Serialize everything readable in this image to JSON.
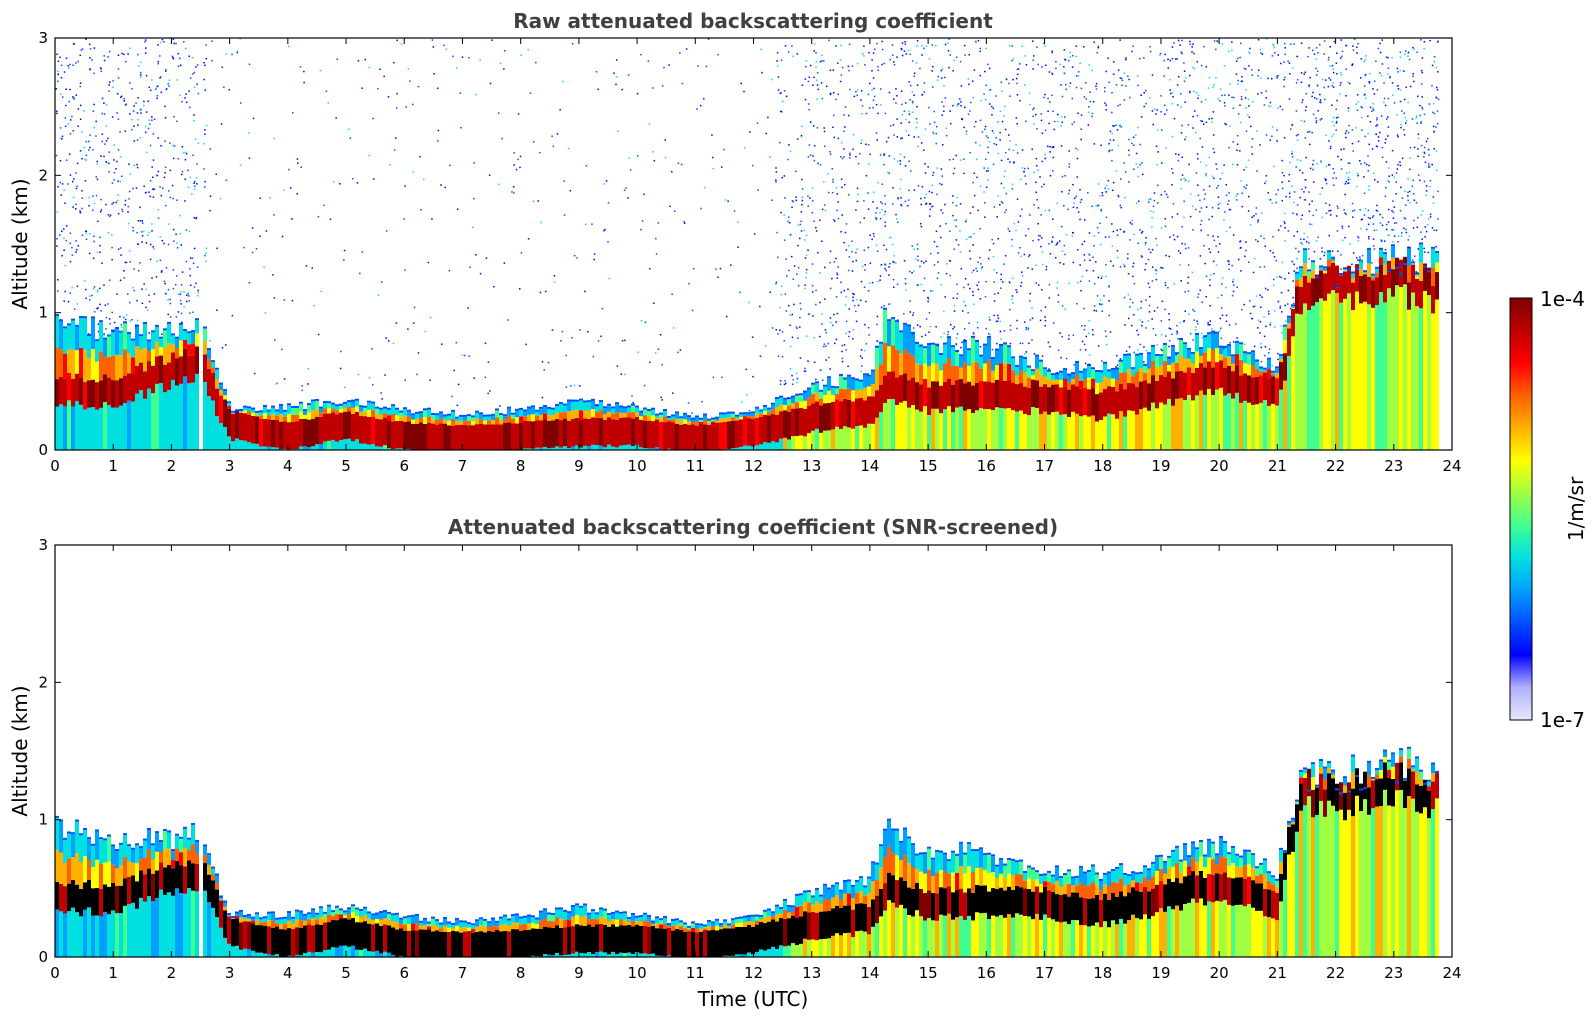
{
  "chart_data": [
    {
      "type": "heatmap",
      "title": "Raw attenuated backscattering coefficient",
      "xlabel": "",
      "ylabel": "Altitude (km)",
      "xlim": [
        0,
        24
      ],
      "ylim": [
        0,
        3
      ],
      "xticks": [
        "0",
        "1",
        "2",
        "3",
        "4",
        "5",
        "6",
        "7",
        "8",
        "9",
        "10",
        "11",
        "12",
        "13",
        "14",
        "15",
        "16",
        "17",
        "18",
        "19",
        "20",
        "21",
        "22",
        "23",
        "24"
      ],
      "yticks": [
        "0",
        "1",
        "2",
        "3"
      ],
      "gap": [
        2.45,
        2.55
      ],
      "data_end": 23.8,
      "layer_top_km": {
        "time": [
          0,
          1,
          2,
          2.5,
          3,
          4,
          5,
          6,
          7,
          8,
          9,
          10,
          11,
          12,
          13,
          14,
          14.3,
          15,
          16,
          17,
          18,
          19,
          20,
          21,
          21.4,
          22,
          23,
          23.8
        ],
        "values": [
          0.95,
          0.85,
          0.85,
          0.9,
          0.3,
          0.3,
          0.35,
          0.28,
          0.25,
          0.28,
          0.35,
          0.3,
          0.22,
          0.28,
          0.45,
          0.55,
          1.0,
          0.75,
          0.75,
          0.6,
          0.6,
          0.7,
          0.8,
          0.6,
          1.35,
          1.3,
          1.4,
          1.35
        ]
      },
      "peak_backscatter_km": {
        "time": [
          0,
          1,
          2,
          2.5,
          3,
          4,
          5,
          6,
          7,
          8,
          9,
          10,
          11,
          12,
          13,
          14,
          14.3,
          15,
          16,
          17,
          18,
          19,
          20,
          21,
          21.4,
          22,
          23,
          23.8
        ],
        "values": [
          0.45,
          0.45,
          0.6,
          0.65,
          0.2,
          0.12,
          0.2,
          0.12,
          0.1,
          0.12,
          0.15,
          0.15,
          0.1,
          0.15,
          0.25,
          0.3,
          0.5,
          0.4,
          0.42,
          0.4,
          0.35,
          0.45,
          0.55,
          0.42,
          1.2,
          1.2,
          1.25,
          1.2
        ]
      },
      "noise_above": true
    },
    {
      "type": "heatmap",
      "title": "Attenuated backscattering coefficient (SNR-screened)",
      "xlabel": "Time (UTC)",
      "ylabel": "Altitude (km)",
      "xlim": [
        0,
        24
      ],
      "ylim": [
        0,
        3
      ],
      "xticks": [
        "0",
        "1",
        "2",
        "3",
        "4",
        "5",
        "6",
        "7",
        "8",
        "9",
        "10",
        "11",
        "12",
        "13",
        "14",
        "15",
        "16",
        "17",
        "18",
        "19",
        "20",
        "21",
        "22",
        "23",
        "24"
      ],
      "yticks": [
        "0",
        "1",
        "2",
        "3"
      ],
      "gap": [
        2.45,
        2.55
      ],
      "data_end": 23.8,
      "noise_above": false
    }
  ],
  "colorbar": {
    "max_label": "1e-4",
    "min_label": "1e-7",
    "unit_label": "1/m/sr",
    "colors": [
      "#e8e8f8",
      "#b0b0ff",
      "#0000ff",
      "#0050ff",
      "#00a0ff",
      "#00e0e0",
      "#40ff90",
      "#a0ff40",
      "#ffff00",
      "#ffb000",
      "#ff6000",
      "#ff0000",
      "#c00000",
      "#800000"
    ]
  }
}
